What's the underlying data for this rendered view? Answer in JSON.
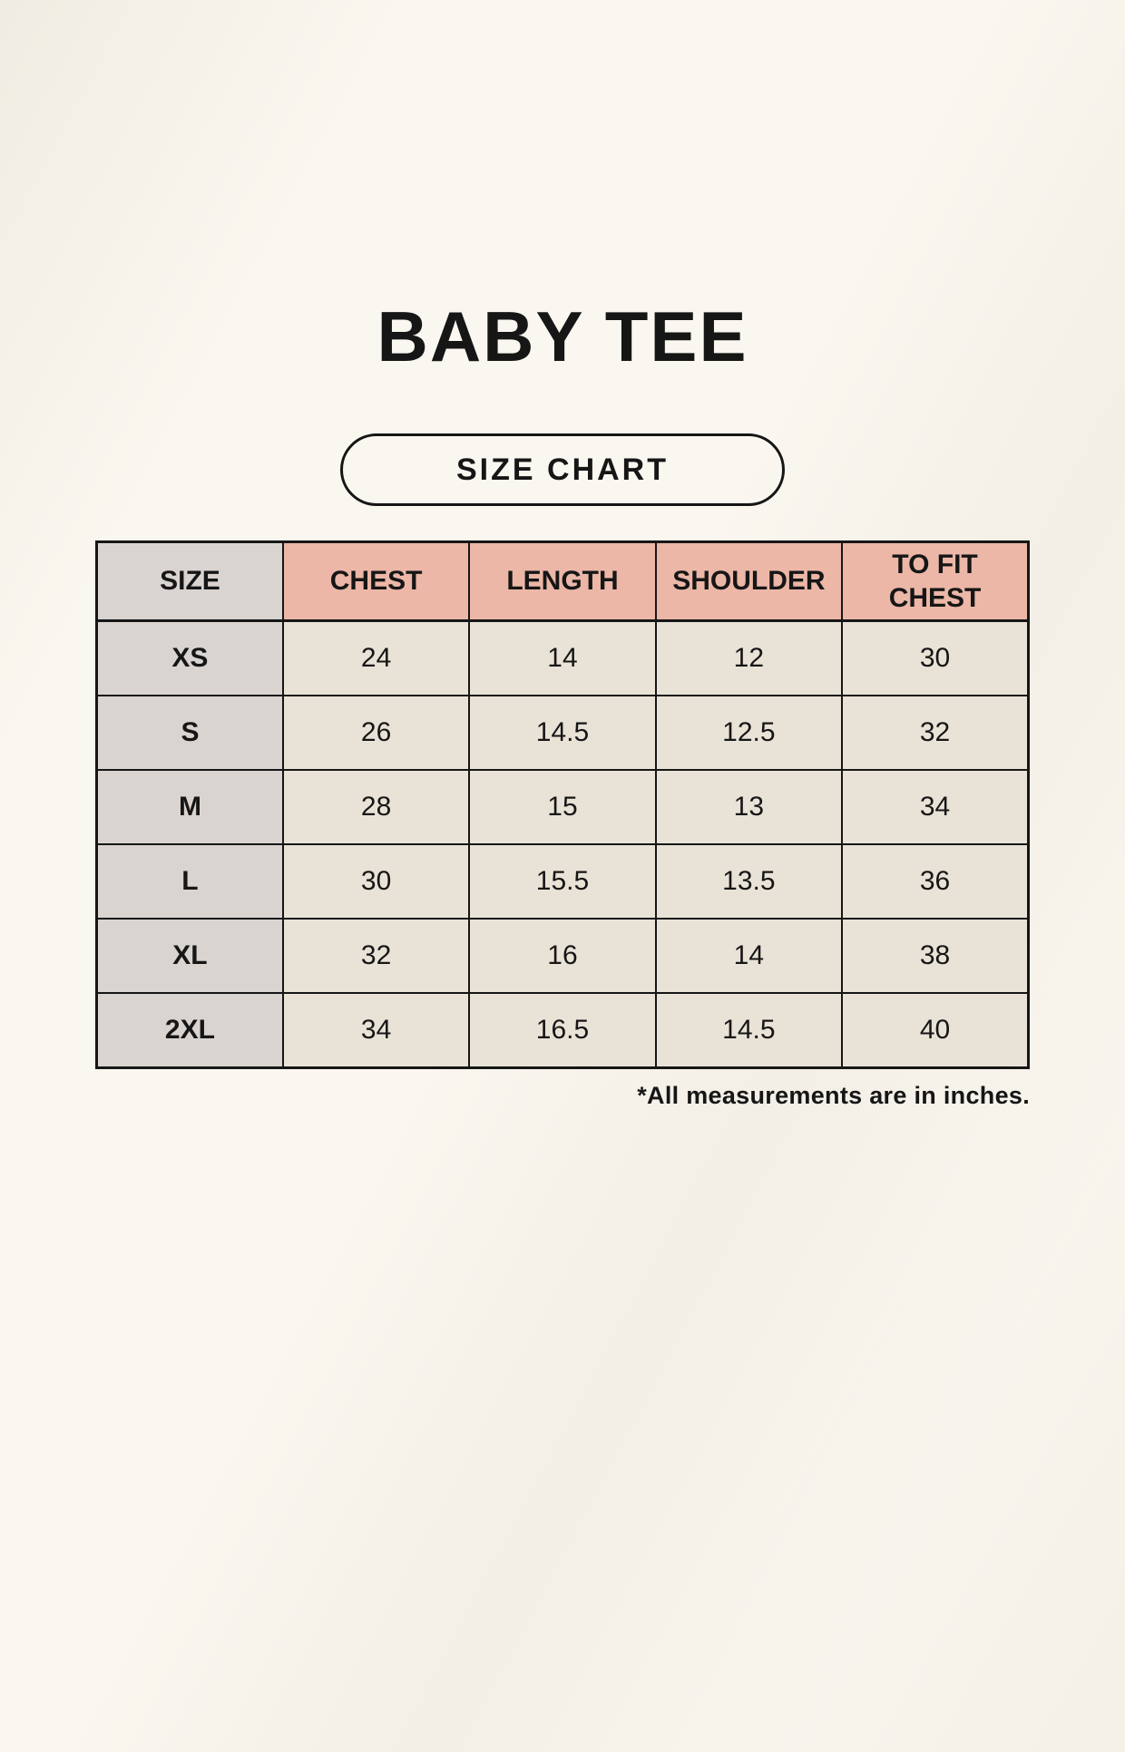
{
  "page": {
    "title": "BABY TEE",
    "badge_label": "SIZE CHART",
    "footnote": "*All measurements are in inches."
  },
  "colors": {
    "page_background": "#faf7f0",
    "header_pink": "#ecb7a7",
    "size_column_gray": "#dad4d0",
    "cell_cream": "#e9e3d7",
    "border_black": "#161616",
    "text": "#161616"
  },
  "table": {
    "headers": [
      "SIZE",
      "CHEST",
      "LENGTH",
      "SHOULDER",
      "TO FIT CHEST"
    ],
    "rows": [
      {
        "size": "XS",
        "chest": "24",
        "length": "14",
        "shoulder": "12",
        "to_fit_chest": "30"
      },
      {
        "size": "S",
        "chest": "26",
        "length": "14.5",
        "shoulder": "12.5",
        "to_fit_chest": "32"
      },
      {
        "size": "M",
        "chest": "28",
        "length": "15",
        "shoulder": "13",
        "to_fit_chest": "34"
      },
      {
        "size": "L",
        "chest": "30",
        "length": "15.5",
        "shoulder": "13.5",
        "to_fit_chest": "36"
      },
      {
        "size": "XL",
        "chest": "32",
        "length": "16",
        "shoulder": "14",
        "to_fit_chest": "38"
      },
      {
        "size": "2XL",
        "chest": "34",
        "length": "16.5",
        "shoulder": "14.5",
        "to_fit_chest": "40"
      }
    ]
  },
  "chart_data": {
    "type": "table",
    "title": "BABY TEE",
    "subtitle": "SIZE CHART",
    "columns": [
      "SIZE",
      "CHEST",
      "LENGTH",
      "SHOULDER",
      "TO FIT CHEST"
    ],
    "rows": [
      [
        "XS",
        24,
        14,
        12,
        30
      ],
      [
        "S",
        26,
        14.5,
        12.5,
        32
      ],
      [
        "M",
        28,
        15,
        13,
        34
      ],
      [
        "L",
        30,
        15.5,
        13.5,
        36
      ],
      [
        "XL",
        32,
        16,
        14,
        38
      ],
      [
        "2XL",
        34,
        16.5,
        14.5,
        40
      ]
    ],
    "note": "*All measurements are in inches."
  }
}
